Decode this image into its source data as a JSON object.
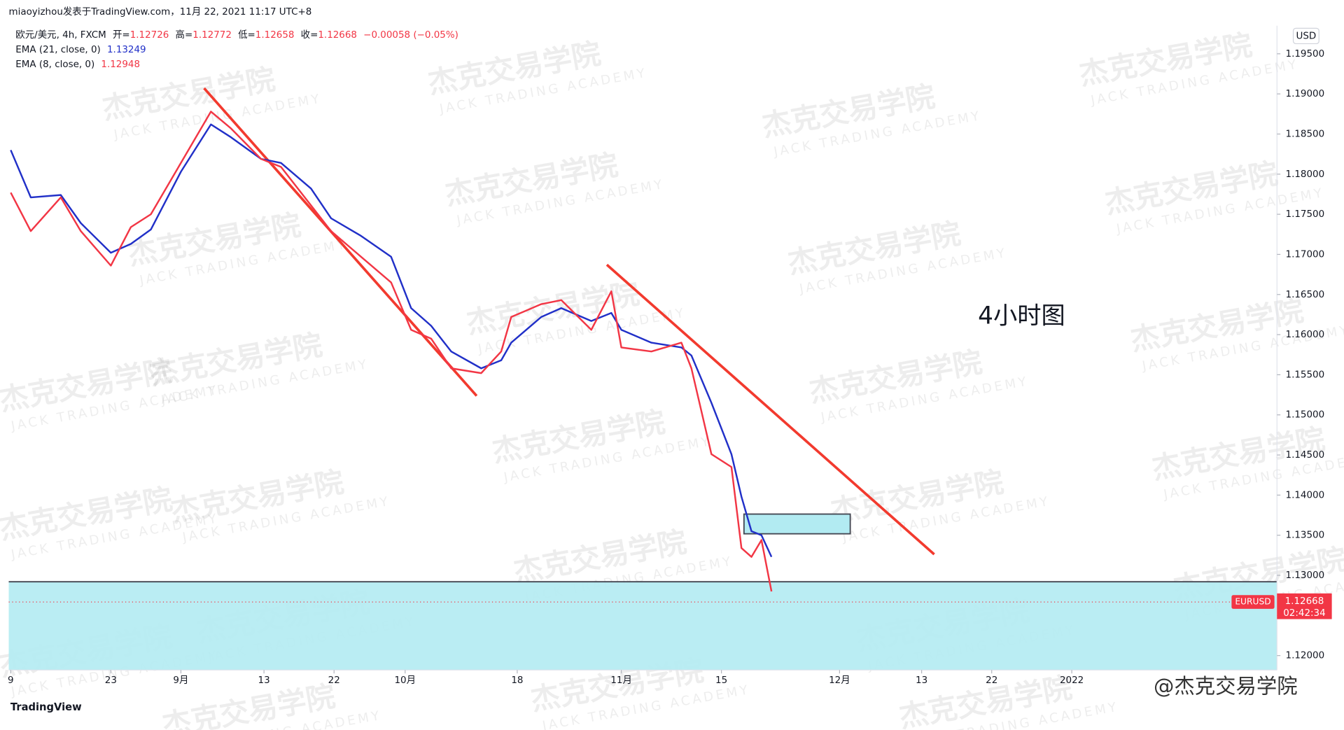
{
  "header": "miaoyizhou发表于TradingView.com，11月 22, 2021 11:17 UTC+8",
  "footer": {
    "brand": "TradingView",
    "credit": "@杰克交易学院"
  },
  "watermark": {
    "title": "杰克交易学院",
    "subtitle": "JACK TRADING ACADEMY"
  },
  "chart_data": {
    "type": "line",
    "annotation": "4小时图",
    "currency": "USD",
    "legend": {
      "symbol": "欧元/美元, 4h, FXCM",
      "open_label": "开=",
      "open": 1.12726,
      "high_label": "高=",
      "high": 1.12772,
      "low_label": "低=",
      "low": 1.12658,
      "close_label": "收=",
      "close": 1.12668,
      "change": "−0.00058 (−0.05%)"
    },
    "last_price": {
      "symbol": "EURUSD",
      "value": 1.12668,
      "countdown": "02:42:34"
    },
    "x": [
      0,
      2,
      5,
      7,
      10,
      12,
      14,
      17,
      20,
      22,
      25,
      27,
      30,
      32,
      35,
      38,
      40,
      42,
      44,
      47,
      49,
      50,
      53,
      55,
      58,
      60,
      61,
      64,
      67,
      68,
      70,
      72,
      73,
      74,
      75,
      76
    ],
    "series": [
      {
        "name": "EMA (21, close, 0)",
        "color": "#2130c8",
        "current": 1.13249,
        "values": [
          1.183,
          1.1771,
          1.1774,
          1.1739,
          1.1702,
          1.1713,
          1.1731,
          1.1803,
          1.1862,
          1.1846,
          1.1819,
          1.1814,
          1.1782,
          1.1745,
          1.1723,
          1.1697,
          1.1633,
          1.1611,
          1.1579,
          1.1558,
          1.1568,
          1.159,
          1.1622,
          1.1633,
          1.1617,
          1.1627,
          1.1606,
          1.159,
          1.1584,
          1.1574,
          1.1515,
          1.1451,
          1.1398,
          1.1355,
          1.135,
          1.1323
        ]
      },
      {
        "name": "EMA (8, close, 0)",
        "color": "#f23645",
        "current": 1.12948,
        "values": [
          1.1777,
          1.1729,
          1.1771,
          1.1729,
          1.1686,
          1.1734,
          1.175,
          1.1814,
          1.1878,
          1.1857,
          1.1819,
          1.1809,
          1.1761,
          1.1729,
          1.1697,
          1.1665,
          1.1606,
          1.1595,
          1.1558,
          1.1552,
          1.1579,
          1.1622,
          1.1638,
          1.1643,
          1.1606,
          1.1654,
          1.1584,
          1.1579,
          1.159,
          1.1558,
          1.1451,
          1.1435,
          1.1334,
          1.1323,
          1.1344,
          1.128
        ]
      }
    ],
    "xlim": [
      -0.2,
      126.5
    ],
    "xticks": [
      {
        "value": 0,
        "label": "9"
      },
      {
        "value": 10,
        "label": "23"
      },
      {
        "value": 17,
        "label": "9月"
      },
      {
        "value": 25.3,
        "label": "13"
      },
      {
        "value": 32.3,
        "label": "22"
      },
      {
        "value": 39.4,
        "label": "10月"
      },
      {
        "value": 50.6,
        "label": "18"
      },
      {
        "value": 61,
        "label": "11月"
      },
      {
        "value": 71,
        "label": "15"
      },
      {
        "value": 82.8,
        "label": "12月"
      },
      {
        "value": 91,
        "label": "13"
      },
      {
        "value": 98,
        "label": "22"
      },
      {
        "value": 106,
        "label": "2022"
      }
    ],
    "ylim": [
      1.1182,
      1.1985
    ],
    "yticks": [
      {
        "value": 1.12,
        "label": "1.12000"
      },
      {
        "value": 1.125,
        "label": "1.12500"
      },
      {
        "value": 1.13,
        "label": "1.13000"
      },
      {
        "value": 1.135,
        "label": "1.13500"
      },
      {
        "value": 1.14,
        "label": "1.14000"
      },
      {
        "value": 1.145,
        "label": "1.14500"
      },
      {
        "value": 1.15,
        "label": "1.15000"
      },
      {
        "value": 1.155,
        "label": "1.15500"
      },
      {
        "value": 1.16,
        "label": "1.16000"
      },
      {
        "value": 1.165,
        "label": "1.16500"
      },
      {
        "value": 1.17,
        "label": "1.17000"
      },
      {
        "value": 1.175,
        "label": "1.17500"
      },
      {
        "value": 1.18,
        "label": "1.18000"
      },
      {
        "value": 1.185,
        "label": "1.18500"
      },
      {
        "value": 1.19,
        "label": "1.19000"
      },
      {
        "value": 1.195,
        "label": "1.19500"
      }
    ],
    "grid": false
  }
}
